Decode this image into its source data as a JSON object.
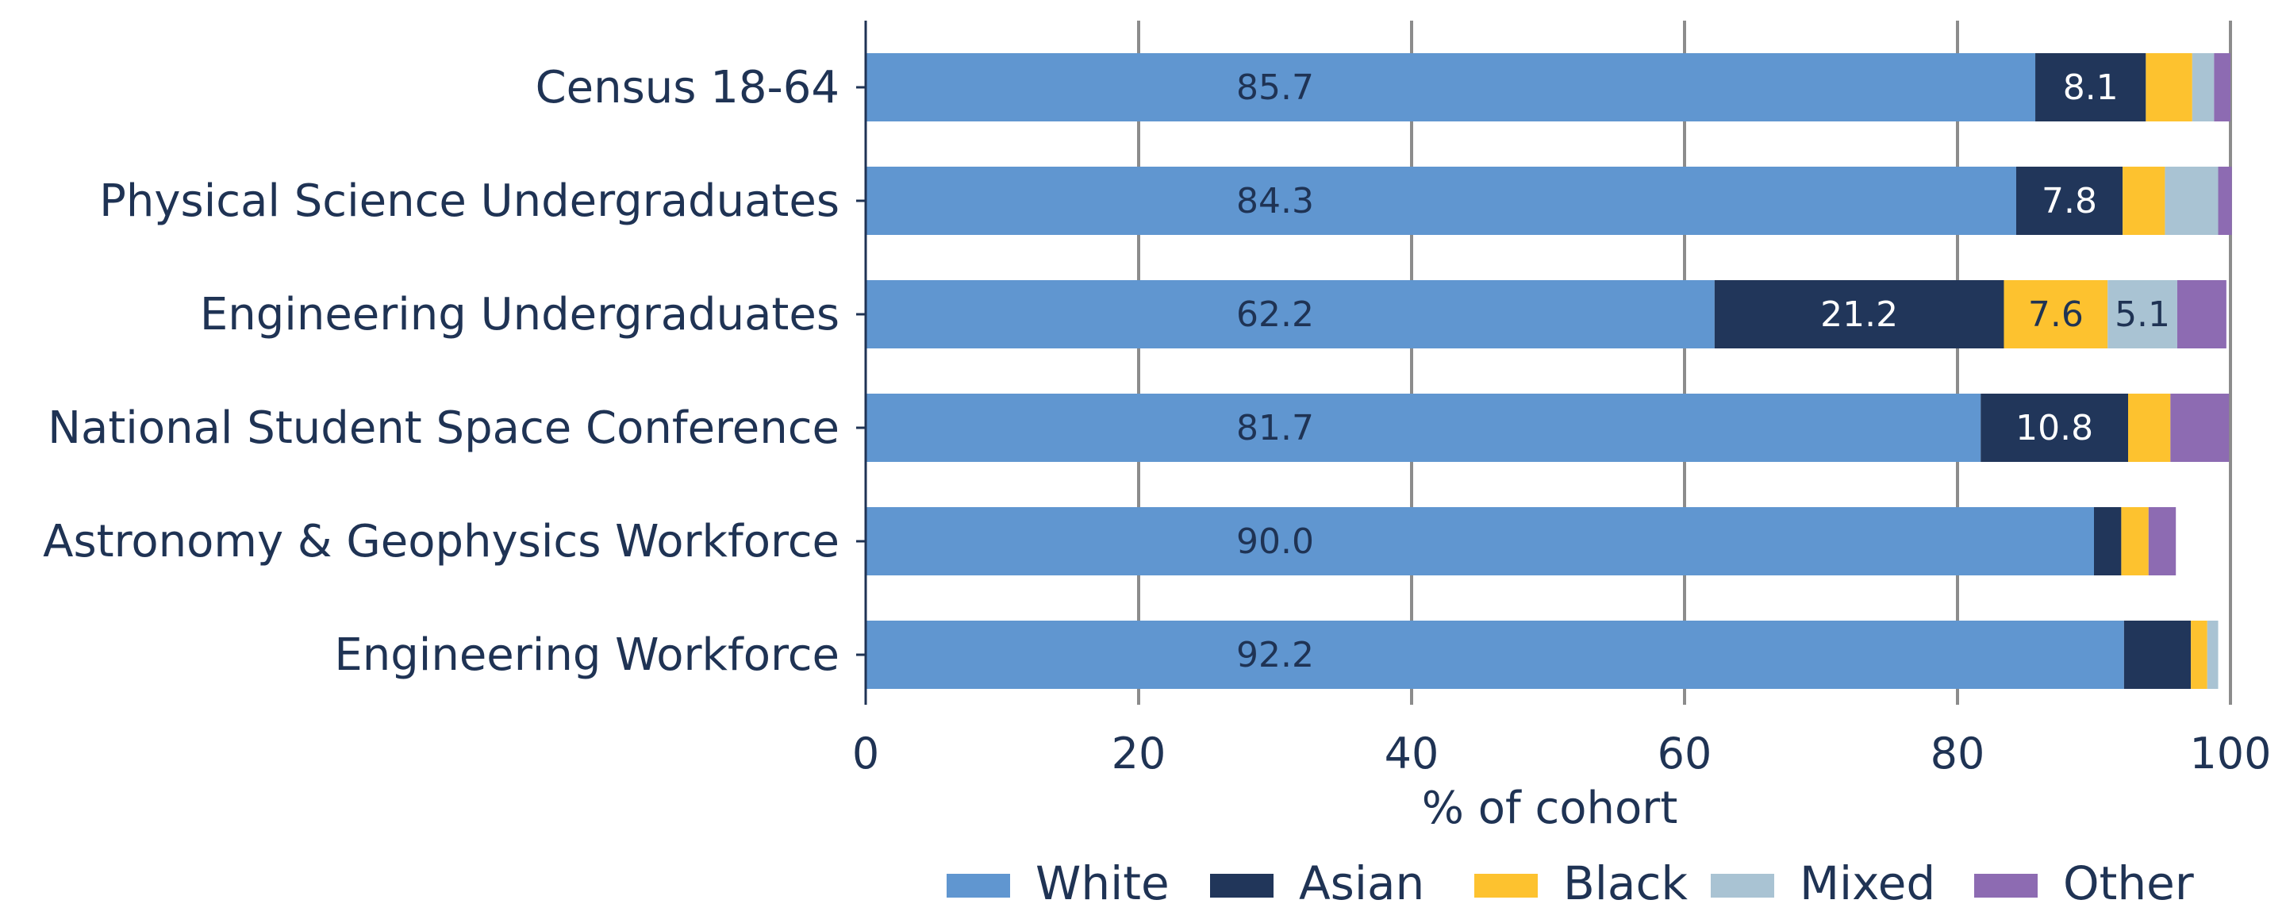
{
  "chart_data": {
    "type": "bar",
    "orientation": "horizontal",
    "stacked": true,
    "categories": [
      "Census 18-64",
      "Physical Science Undergraduates",
      "Engineering Undergraduates",
      "National Student Space Conference",
      "Astronomy & Geophysics Workforce",
      "Engineering Workforce"
    ],
    "series": [
      {
        "name": "White",
        "color": "#6096d0",
        "label_color": "#1f3354",
        "values": [
          85.7,
          84.3,
          62.2,
          81.7,
          90.0,
          92.2
        ]
      },
      {
        "name": "Asian",
        "color": "#21365a",
        "label_color": "#ffffff",
        "values": [
          8.1,
          7.8,
          21.2,
          10.8,
          2.0,
          4.9
        ]
      },
      {
        "name": "Black",
        "color": "#fdc22f",
        "label_color": "#1f3354",
        "values": [
          3.4,
          3.1,
          7.6,
          3.1,
          2.0,
          1.2
        ]
      },
      {
        "name": "Mixed",
        "color": "#a9c3d3",
        "label_color": "#1f3354",
        "values": [
          1.6,
          3.9,
          5.1,
          0.0,
          0.0,
          0.8
        ]
      },
      {
        "name": "Other",
        "color": "#8d6bb2",
        "label_color": "#1f3354",
        "values": [
          1.2,
          1.0,
          3.6,
          4.3,
          2.0,
          0.0
        ]
      }
    ],
    "data_labels": [
      {
        "series": 0,
        "category": 0,
        "text": "85.7"
      },
      {
        "series": 0,
        "category": 1,
        "text": "84.3"
      },
      {
        "series": 0,
        "category": 2,
        "text": "62.2"
      },
      {
        "series": 0,
        "category": 3,
        "text": "81.7"
      },
      {
        "series": 0,
        "category": 4,
        "text": "90.0"
      },
      {
        "series": 0,
        "category": 5,
        "text": "92.2"
      },
      {
        "series": 1,
        "category": 0,
        "text": "8.1"
      },
      {
        "series": 1,
        "category": 1,
        "text": "7.8"
      },
      {
        "series": 1,
        "category": 2,
        "text": "21.2"
      },
      {
        "series": 1,
        "category": 3,
        "text": "10.8"
      },
      {
        "series": 2,
        "category": 2,
        "text": "7.6"
      },
      {
        "series": 3,
        "category": 2,
        "text": "5.1"
      }
    ],
    "xlabel": "% of cohort",
    "xlim": [
      0,
      100
    ],
    "xticks": [
      "0",
      "20",
      "40",
      "60",
      "80",
      "100"
    ],
    "white_label_at": 30,
    "grid": "vertical",
    "legend": "bottom"
  }
}
